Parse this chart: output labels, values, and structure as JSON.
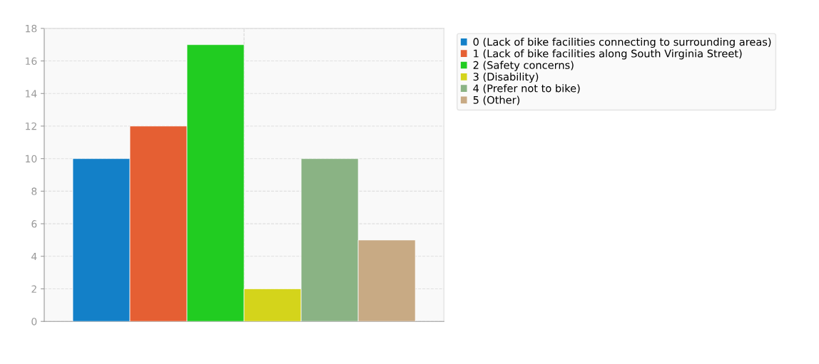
{
  "chart_data": {
    "type": "bar",
    "categories": [
      null
    ],
    "series": [
      {
        "name": "0 (Lack of bike facilities connecting to surrounding areas)",
        "color": "#1380c8",
        "values": [
          10
        ]
      },
      {
        "name": "1 (Lack of bike facilities along South Virginia Street)",
        "color": "#e55f33",
        "values": [
          12
        ]
      },
      {
        "name": "2 (Safety concerns)",
        "color": "#21cc21",
        "values": [
          17
        ]
      },
      {
        "name": "3 (Disability)",
        "color": "#d4d41b",
        "values": [
          2
        ]
      },
      {
        "name": "4 (Prefer not to bike)",
        "color": "#8ab384",
        "values": [
          10
        ]
      },
      {
        "name": "5 (Other)",
        "color": "#c8aa84",
        "values": [
          5
        ]
      }
    ],
    "ylim": [
      0,
      18
    ],
    "yticks": [
      0,
      2,
      4,
      6,
      8,
      10,
      12,
      14,
      16,
      18
    ],
    "grid": true,
    "legend": "top right"
  }
}
